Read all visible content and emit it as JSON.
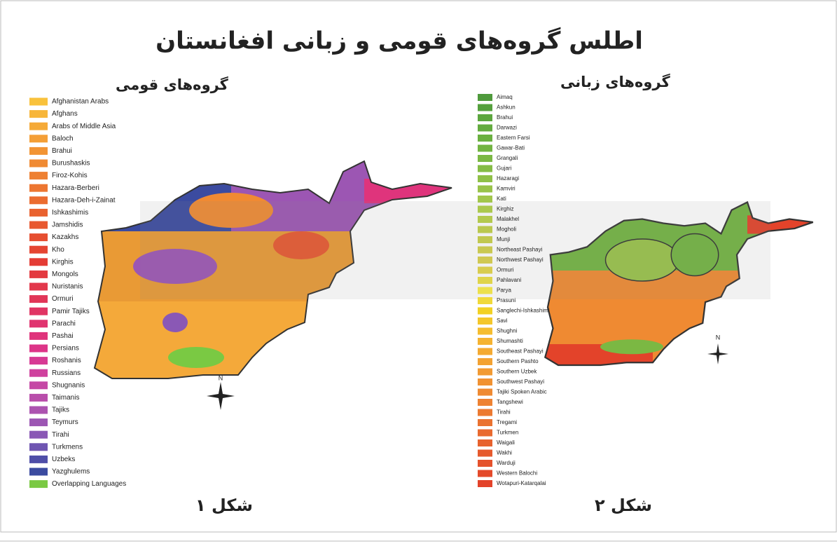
{
  "title": "اطلس گروه‌های قومی و زبانی افغانستان",
  "maps": [
    {
      "legend_title": "گروه‌های قومی",
      "caption": "شکل ۱",
      "compass_label": "N",
      "items": [
        {
          "label": "Afghanistan Arabs",
          "color": "#f9c23c"
        },
        {
          "label": "Afghans",
          "color": "#f7b63a"
        },
        {
          "label": "Arabs of Middle Asia",
          "color": "#f5aa38"
        },
        {
          "label": "Baloch",
          "color": "#f49f36"
        },
        {
          "label": "Brahui",
          "color": "#f29434"
        },
        {
          "label": "Burushaskis",
          "color": "#f08a33"
        },
        {
          "label": "Firoz-Kohis",
          "color": "#ee8032"
        },
        {
          "label": "Hazara-Berberi",
          "color": "#ed7631"
        },
        {
          "label": "Hazara-Deh-i-Zainat",
          "color": "#eb6c30"
        },
        {
          "label": "Ishkashimis",
          "color": "#e9622f"
        },
        {
          "label": "Jamshidis",
          "color": "#e8582f"
        },
        {
          "label": "Kazakhs",
          "color": "#e64e30"
        },
        {
          "label": "Kho",
          "color": "#e54532"
        },
        {
          "label": "Kirghis",
          "color": "#e43c35"
        },
        {
          "label": "Mongols",
          "color": "#e33a40"
        },
        {
          "label": "Nuristanis",
          "color": "#e2384c"
        },
        {
          "label": "Ormuri",
          "color": "#e13658"
        },
        {
          "label": "Pamir Tajiks",
          "color": "#e03564"
        },
        {
          "label": "Parachi",
          "color": "#e03470"
        },
        {
          "label": "Pashai",
          "color": "#df347c"
        },
        {
          "label": "Persians",
          "color": "#dd3588"
        },
        {
          "label": "Roshanis",
          "color": "#d73a94"
        },
        {
          "label": "Russians",
          "color": "#cf419e"
        },
        {
          "label": "Shugnanis",
          "color": "#c548a5"
        },
        {
          "label": "Taimanis",
          "color": "#b94eab"
        },
        {
          "label": "Tajiks",
          "color": "#ac53b0"
        },
        {
          "label": "Teymurs",
          "color": "#9c56b3"
        },
        {
          "label": "Tirahi",
          "color": "#8a58b5"
        },
        {
          "label": "Turkmens",
          "color": "#6f55b1"
        },
        {
          "label": "Uzbeks",
          "color": "#4f4ea8"
        },
        {
          "label": "Yazghulems",
          "color": "#3b4ba0"
        },
        {
          "label": "Overlapping Languages",
          "color": "#7ac943"
        }
      ]
    },
    {
      "legend_title": "گروه‌های زبانی",
      "caption": "شکل ۲",
      "compass_label": "N",
      "items": [
        {
          "label": "Aimaq",
          "color": "#4f9a3c"
        },
        {
          "label": "Ashkun",
          "color": "#55a03d"
        },
        {
          "label": "Brahui",
          "color": "#5ca63e"
        },
        {
          "label": "Darwazi",
          "color": "#63ab3f"
        },
        {
          "label": "Eastern Farsi",
          "color": "#6ab040"
        },
        {
          "label": "Gawar-Bati",
          "color": "#72b441"
        },
        {
          "label": "Grangali",
          "color": "#7bb843"
        },
        {
          "label": "Gujari",
          "color": "#85bc45"
        },
        {
          "label": "Hazaragi",
          "color": "#8fc047"
        },
        {
          "label": "Kamviri",
          "color": "#99c349"
        },
        {
          "label": "Kati",
          "color": "#a2c64b"
        },
        {
          "label": "Kirghiz",
          "color": "#abc84d"
        },
        {
          "label": "Malakhel",
          "color": "#b3c94e"
        },
        {
          "label": "Mogholi",
          "color": "#bac84f"
        },
        {
          "label": "Munji",
          "color": "#c1c850"
        },
        {
          "label": "Northeast Pashayi",
          "color": "#c9c851"
        },
        {
          "label": "Northwest Pashayi",
          "color": "#d0c852"
        },
        {
          "label": "Ormuri",
          "color": "#d8cc4e"
        },
        {
          "label": "Pahlavani",
          "color": "#dfd44a"
        },
        {
          "label": "Parya",
          "color": "#ece04c"
        },
        {
          "label": "Prasuni",
          "color": "#f0d93a"
        },
        {
          "label": "Sanglechi-Ishkashimi",
          "color": "#f2d124"
        },
        {
          "label": "Savi",
          "color": "#f4c72a"
        },
        {
          "label": "Shughni",
          "color": "#f5bd2e"
        },
        {
          "label": "Shumashti",
          "color": "#f5b330"
        },
        {
          "label": "Southeast Pashayi",
          "color": "#f4aa31"
        },
        {
          "label": "Southern Pashto",
          "color": "#f3a232"
        },
        {
          "label": "Southern Uzbek",
          "color": "#f29a32"
        },
        {
          "label": "Southwest Pashayi",
          "color": "#f19232"
        },
        {
          "label": "Tajiki Spoken Arabic",
          "color": "#ef8a32"
        },
        {
          "label": "Tangshewi",
          "color": "#ee8232"
        },
        {
          "label": "Tirahi",
          "color": "#ec7a31"
        },
        {
          "label": "Tregami",
          "color": "#ea7230"
        },
        {
          "label": "Turkmen",
          "color": "#e96a2f"
        },
        {
          "label": "Waigali",
          "color": "#e7622e"
        },
        {
          "label": "Wakhi",
          "color": "#e65a2d"
        },
        {
          "label": "Warduji",
          "color": "#e5522c"
        },
        {
          "label": "Western Balochi",
          "color": "#e44a2b"
        },
        {
          "label": "Wotapuri-Katarqalai",
          "color": "#e3432a"
        }
      ]
    }
  ]
}
